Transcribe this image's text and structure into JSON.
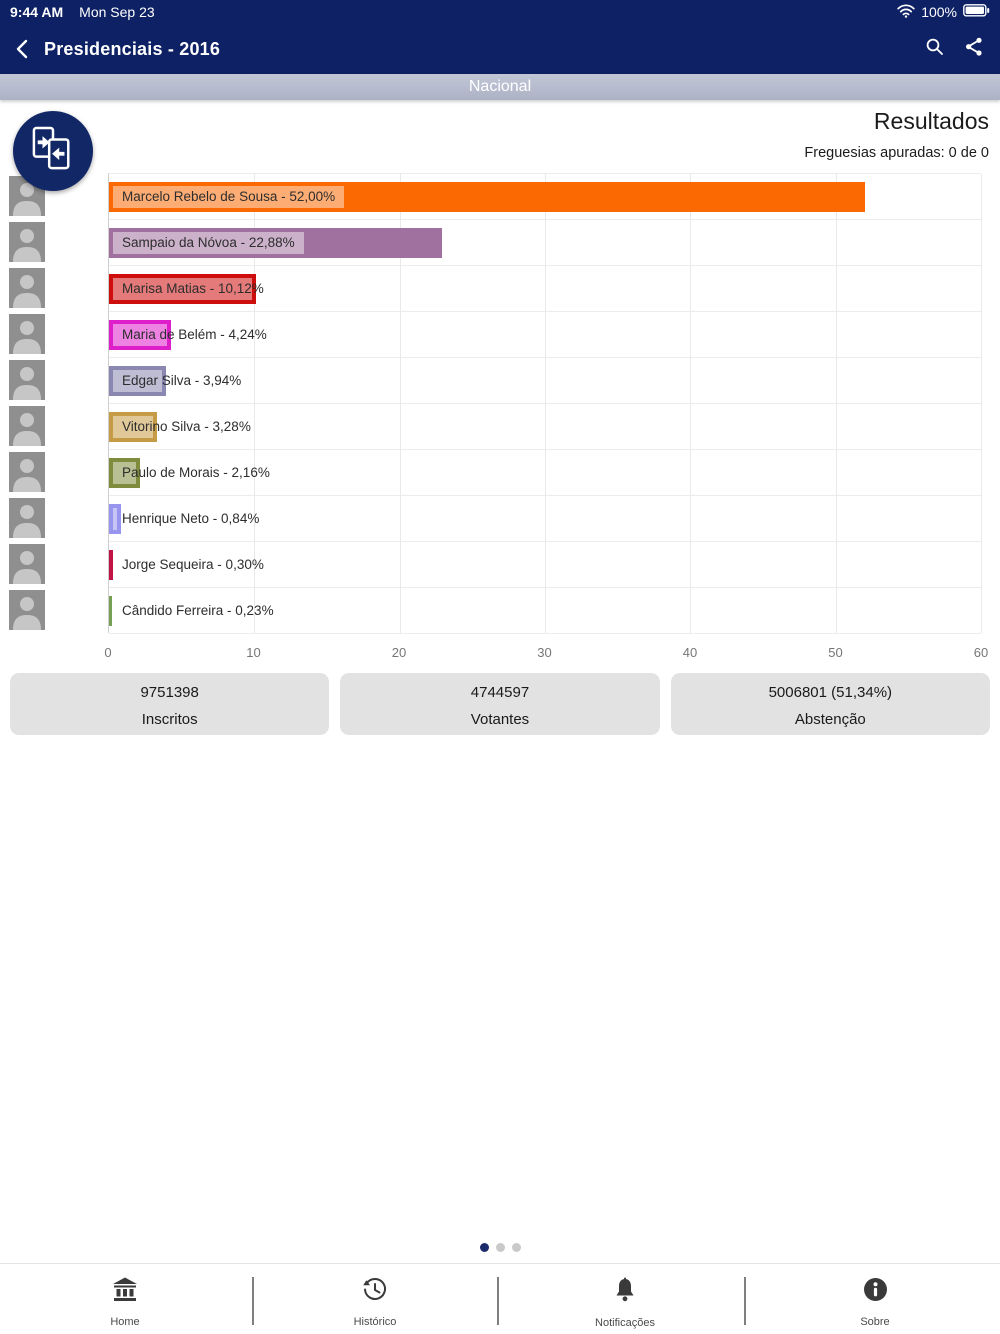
{
  "status_bar": {
    "time": "9:44 AM",
    "date": "Mon Sep 23",
    "battery": "100%"
  },
  "nav_bar": {
    "title": "Presidenciais - 2016"
  },
  "region_bar": {
    "label": "Nacional"
  },
  "results": {
    "title": "Resultados",
    "subtitle": "Freguesias apuradas: 0 de 0"
  },
  "chart_data": {
    "type": "bar",
    "orientation": "horizontal",
    "categories": [
      "Marcelo Rebelo de Sousa",
      "Sampaio da Nóvoa",
      "Marisa Matias",
      "Maria de Belém",
      "Edgar Silva",
      "Vitorino Silva",
      "Paulo de Morais",
      "Henrique Neto",
      "Jorge Sequeira",
      "Cândido Ferreira"
    ],
    "values": [
      52.0,
      22.88,
      10.12,
      4.24,
      3.94,
      3.28,
      2.16,
      0.84,
      0.3,
      0.23
    ],
    "labels": [
      "Marcelo Rebelo de Sousa - 52,00%",
      "Sampaio da Nóvoa - 22,88%",
      "Marisa Matias - 10,12%",
      "Maria de Belém - 4,24%",
      "Edgar Silva - 3,94%",
      "Vitorino Silva - 3,28%",
      "Paulo de Morais - 2,16%",
      "Henrique Neto - 0,84%",
      "Jorge Sequeira - 0,30%",
      "Cândido Ferreira - 0,23%"
    ],
    "colors": [
      "#FB6A02",
      "#A0719F",
      "#CE0D0D",
      "#DE1DCB",
      "#8A87B0",
      "#C69B45",
      "#7F8C3D",
      "#9795EE",
      "#C01346",
      "#78A055"
    ],
    "xlim": [
      0,
      60
    ],
    "xticks": [
      0,
      10,
      20,
      30,
      40,
      50,
      60
    ],
    "grid": true,
    "legend": "none",
    "title": ""
  },
  "summary_cards": [
    {
      "value": "9751398",
      "label": "Inscritos"
    },
    {
      "value": "4744597",
      "label": "Votantes"
    },
    {
      "value": "5006801 (51,34%)",
      "label": "Abstenção"
    }
  ],
  "pagination": {
    "dots": 3,
    "active": 0
  },
  "tab_bar": {
    "items": [
      {
        "label": "Home",
        "icon": "bank-icon"
      },
      {
        "label": "Histórico",
        "icon": "history-icon"
      },
      {
        "label": "Notificações",
        "icon": "bell-icon"
      },
      {
        "label": "Sobre",
        "icon": "info-icon"
      }
    ]
  },
  "colors": {
    "navbar": "#0E2164",
    "region_bar_bg": "#b7bdd0",
    "card_bg": "#e2e2e2",
    "dot_active": "#1A2A6C",
    "bar_label_tint": "rgba(255,255,255,0.45)"
  }
}
